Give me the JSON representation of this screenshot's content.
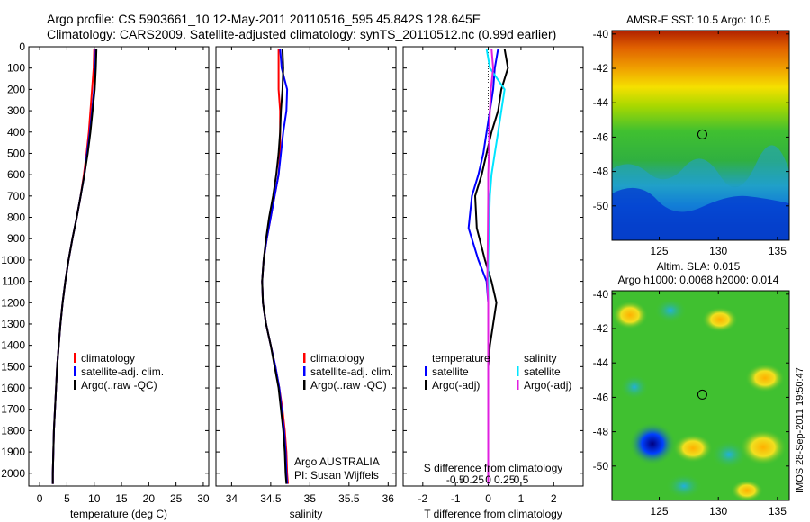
{
  "header": {
    "line1": "Argo profile: CS 5903661_10 12-May-2011 20110516_595 45.842S 128.645E",
    "line2": "Climatology: CARS2009. Satellite-adjusted climatology: synTS_20110512.nc (0.99d earlier)"
  },
  "footer": {
    "credit": "IMOS 28-Sep-2011 19:50:47"
  },
  "colors": {
    "climatology": "#ff0000",
    "satellite": "#0000ff",
    "argo": "#000000",
    "sal_satellite": "#00e5ff",
    "sal_argo": "#e020e0"
  },
  "chart_data": [
    {
      "id": "temperature",
      "type": "line",
      "xlabel": "temperature (deg C)",
      "ylabel": "",
      "xlim": [
        -2,
        31
      ],
      "ylim": [
        2060,
        0
      ],
      "xticks": [
        0,
        5,
        10,
        15,
        20,
        25,
        30
      ],
      "yticks": [
        0,
        100,
        200,
        300,
        400,
        500,
        600,
        700,
        800,
        900,
        1000,
        1100,
        1200,
        1300,
        1400,
        1500,
        1600,
        1700,
        1800,
        1900,
        2000
      ],
      "legend": [
        "climatology",
        "satellite-adj. clim.",
        "Argo(..raw -QC)"
      ],
      "series": [
        {
          "name": "climatology",
          "color": "#ff0000",
          "x": [
            10.0,
            9.9,
            9.6,
            9.3,
            9.0,
            8.6,
            8.1,
            7.5,
            6.8,
            6.0,
            5.3,
            4.7,
            4.2,
            3.8,
            3.5,
            3.2,
            3.0,
            2.8,
            2.6,
            2.5,
            2.4,
            2.4
          ],
          "y": [
            10,
            100,
            200,
            300,
            400,
            500,
            600,
            700,
            800,
            900,
            1000,
            1100,
            1200,
            1300,
            1400,
            1500,
            1600,
            1700,
            1800,
            1900,
            2000,
            2050
          ]
        },
        {
          "name": "satellite-adj. clim.",
          "color": "#0000ff",
          "x": [
            10.3,
            10.2,
            10.0,
            9.6,
            9.2,
            8.7,
            8.2,
            7.5,
            6.8,
            6.0,
            5.3,
            4.7,
            4.2,
            3.8,
            3.5,
            3.2,
            3.0,
            2.8,
            2.6,
            2.5,
            2.4,
            2.4
          ],
          "y": [
            10,
            100,
            200,
            300,
            400,
            500,
            600,
            700,
            800,
            900,
            1000,
            1100,
            1200,
            1300,
            1400,
            1500,
            1600,
            1700,
            1800,
            1900,
            2000,
            2050
          ]
        },
        {
          "name": "Argo(..raw -QC)",
          "color": "#000000",
          "x": [
            10.4,
            10.3,
            10.1,
            9.7,
            9.3,
            8.8,
            8.2,
            7.5,
            6.8,
            6.0,
            5.3,
            4.7,
            4.2,
            3.8,
            3.5,
            3.2,
            3.0,
            2.8,
            2.6,
            2.5,
            2.4,
            2.4
          ],
          "y": [
            10,
            100,
            200,
            300,
            400,
            500,
            600,
            700,
            800,
            900,
            1000,
            1100,
            1200,
            1300,
            1400,
            1500,
            1600,
            1700,
            1800,
            1900,
            2000,
            2050
          ]
        }
      ]
    },
    {
      "id": "salinity",
      "type": "line",
      "xlabel": "salinity",
      "xlim": [
        33.8,
        36.1
      ],
      "ylim": [
        2060,
        0
      ],
      "xticks": [
        34,
        34.5,
        35,
        35.5,
        36
      ],
      "legend": [
        "climatology",
        "satellite-adj. clim.",
        "Argo(..raw -QC)"
      ],
      "annotation": [
        "Argo AUSTRALIA",
        "PI: Susan Wijffels"
      ],
      "series": [
        {
          "name": "climatology",
          "color": "#ff0000",
          "x": [
            34.6,
            34.6,
            34.6,
            34.62,
            34.62,
            34.62,
            34.6,
            34.55,
            34.5,
            34.45,
            34.41,
            34.39,
            34.4,
            34.44,
            34.5,
            34.56,
            34.61,
            34.65,
            34.68,
            34.7,
            34.71,
            34.72
          ],
          "y": [
            10,
            100,
            200,
            300,
            400,
            500,
            600,
            700,
            800,
            900,
            1000,
            1100,
            1200,
            1300,
            1400,
            1500,
            1600,
            1700,
            1800,
            1900,
            2000,
            2050
          ]
        },
        {
          "name": "satellite-adj. clim.",
          "color": "#0000ff",
          "x": [
            34.62,
            34.64,
            34.71,
            34.7,
            34.66,
            34.63,
            34.6,
            34.55,
            34.5,
            34.45,
            34.41,
            34.39,
            34.4,
            34.44,
            34.5,
            34.56,
            34.61,
            34.64,
            34.67,
            34.69,
            34.7,
            34.71
          ],
          "y": [
            10,
            100,
            200,
            300,
            400,
            500,
            600,
            700,
            800,
            900,
            1000,
            1100,
            1200,
            1300,
            1400,
            1500,
            1600,
            1700,
            1800,
            1900,
            2000,
            2050
          ]
        },
        {
          "name": "Argo(..raw -QC)",
          "color": "#000000",
          "x": [
            34.65,
            34.66,
            34.65,
            34.63,
            34.62,
            34.6,
            34.57,
            34.53,
            34.48,
            34.44,
            34.41,
            34.39,
            34.4,
            34.44,
            34.5,
            34.55,
            34.6,
            34.63,
            34.66,
            34.68,
            34.69,
            34.7
          ],
          "y": [
            10,
            100,
            200,
            300,
            400,
            500,
            600,
            700,
            800,
            900,
            1000,
            1100,
            1200,
            1300,
            1400,
            1500,
            1600,
            1700,
            1800,
            1900,
            2000,
            2050
          ]
        }
      ]
    },
    {
      "id": "difference",
      "type": "line",
      "xlabel": "T difference from climatology",
      "top_label": "S difference from climatology",
      "xlim": [
        -2.6,
        2.9
      ],
      "ylim": [
        2060,
        0
      ],
      "xticks": [
        -2,
        -1,
        0,
        1,
        2
      ],
      "s_xticks": [
        -0.5,
        -0.25,
        0,
        0.25,
        0.5
      ],
      "s_tick_labels": [
        "-0.5",
        "-0.25",
        "0",
        "0.25",
        "0.5"
      ],
      "legend_groups": [
        {
          "title": "temperature",
          "items": [
            "satellite",
            "Argo(-adj)"
          ]
        },
        {
          "title": "salinity",
          "items": [
            "satellite",
            "Argo(-adj)"
          ]
        }
      ],
      "series": [
        {
          "name": "T satellite",
          "color": "#0000ff",
          "x": [
            0.3,
            0.2,
            0.15,
            0.05,
            -0.05,
            -0.15,
            -0.3,
            -0.5,
            -0.6,
            -0.3,
            -0.05,
            0.0,
            0.0,
            0.0,
            0.0,
            0.0,
            0.0,
            0.0,
            0.0,
            0.0,
            0.0
          ],
          "y": [
            10,
            100,
            200,
            300,
            400,
            500,
            600,
            700,
            850,
            1000,
            1100,
            1200,
            1300,
            1400,
            1500,
            1600,
            1700,
            1800,
            1900,
            2000,
            2050
          ]
        },
        {
          "name": "T Argo(-adj)",
          "color": "#000000",
          "x": [
            0.5,
            0.6,
            0.4,
            0.3,
            0.1,
            -0.05,
            -0.2,
            -0.4,
            -0.35,
            -0.1,
            0.1,
            0.25,
            0.15,
            0.05,
            0.0,
            0.0,
            0.0,
            0.0,
            0.0,
            0.0,
            0.0
          ],
          "y": [
            10,
            100,
            200,
            300,
            400,
            500,
            600,
            700,
            850,
            1000,
            1100,
            1200,
            1300,
            1400,
            1500,
            1600,
            1700,
            1800,
            1900,
            2000,
            2050
          ]
        },
        {
          "name": "S satellite",
          "color": "#00e5ff",
          "x": [
            -0.05,
            0.05,
            0.5,
            0.4,
            0.3,
            0.2,
            0.1,
            0.05,
            0.02,
            0.0,
            0.0,
            0.0,
            0.0,
            0.0,
            0.0,
            0.0,
            0.0,
            0.0,
            0.0,
            0.0,
            0.0
          ],
          "y": [
            10,
            100,
            200,
            300,
            400,
            500,
            600,
            700,
            850,
            1000,
            1100,
            1200,
            1300,
            1400,
            1500,
            1600,
            1700,
            1800,
            1900,
            2000,
            2050
          ]
        },
        {
          "name": "S Argo(-adj)",
          "color": "#e020e0",
          "x": [
            0.1,
            0.15,
            0.08,
            0.05,
            0.03,
            0.02,
            0.0,
            0.0,
            -0.01,
            -0.02,
            -0.03,
            0.0,
            0.0,
            0.0,
            0.0,
            0.0,
            0.0,
            0.0,
            0.0,
            0.0,
            0.0
          ],
          "y": [
            10,
            100,
            200,
            300,
            400,
            500,
            600,
            700,
            850,
            1000,
            1100,
            1200,
            1300,
            1400,
            1500,
            1600,
            1700,
            1800,
            1900,
            2000,
            2050
          ]
        }
      ]
    },
    {
      "id": "sst_map",
      "type": "heatmap",
      "title": "AMSR-E SST: 10.5  Argo: 10.5",
      "xlim": [
        121,
        136
      ],
      "ylim": [
        -52,
        -39.8
      ],
      "xticks": [
        125,
        130,
        135
      ],
      "yticks": [
        -40,
        -42,
        -44,
        -46,
        -48,
        -50
      ],
      "marker": {
        "lon": 128.645,
        "lat": -45.842
      }
    },
    {
      "id": "sla_map",
      "type": "heatmap",
      "title": "Altim. SLA: 0.015",
      "subtitle": "Argo h1000: 0.0068 h2000: 0.014",
      "xlim": [
        121,
        136
      ],
      "ylim": [
        -52,
        -39.8
      ],
      "xticks": [
        125,
        130,
        135
      ],
      "yticks": [
        -40,
        -42,
        -44,
        -46,
        -48,
        -50
      ],
      "marker": {
        "lon": 128.645,
        "lat": -45.842
      }
    }
  ]
}
